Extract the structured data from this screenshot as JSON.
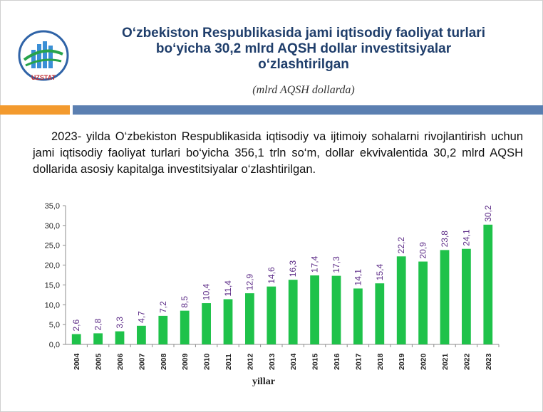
{
  "header": {
    "logo_text": "UZSTAT",
    "title_line1": "O‘zbekiston Respublikasida jami iqtisodiy faoliyat turlari",
    "title_line2": "bo‘yicha 30,2  mlrd AQSH dollar investitsiyalar",
    "title_line3": "o‘zlashtirilgan",
    "subtitle": "(mlrd AQSH dollarda)"
  },
  "body": {
    "paragraph": "2023- yilda O‘zbekiston Respublikasida iqtisodiy va ijtimoiy sohalarni rivojlantirish uchun jami iqtisodiy faoliyat turlari bo‘yicha 356,1 trln so‘m, dollar ekvivalentida 30,2 mlrd AQSH dollarida asosiy kapitalga investitsiyalar o‘zlashtirilgan."
  },
  "colors": {
    "bar": "#1fc24a",
    "data_label": "#5b2a86",
    "title": "#1f3e6b",
    "accent_orange": "#f39a2e",
    "accent_blue": "#5b7fb1"
  },
  "chart_data": {
    "type": "bar",
    "categories": [
      "2004",
      "2005",
      "2006",
      "2007",
      "2008",
      "2009",
      "2010",
      "2011",
      "2012",
      "2013",
      "2014",
      "2015",
      "2016",
      "2017",
      "2018",
      "2019",
      "2020",
      "2021",
      "2022",
      "2023"
    ],
    "values": [
      2.6,
      2.8,
      3.3,
      4.7,
      7.2,
      8.5,
      10.4,
      11.4,
      12.9,
      14.6,
      16.3,
      17.4,
      17.3,
      14.1,
      15.4,
      22.2,
      20.9,
      23.8,
      24.1,
      30.2
    ],
    "value_labels": [
      "2,6",
      "2,8",
      "3,3",
      "4,7",
      "7,2",
      "8,5",
      "10,4",
      "11,4",
      "12,9",
      "14,6",
      "16,3",
      "17,4",
      "17,3",
      "14,1",
      "15,4",
      "22,2",
      "20,9",
      "23,8",
      "24,1",
      "30,2"
    ],
    "y_ticks": [
      "0,0",
      "5,0",
      "10,0",
      "15,0",
      "20,0",
      "25,0",
      "30,0",
      "35,0"
    ],
    "ylim": [
      0,
      35
    ],
    "xlabel": "yillar",
    "ylabel": "",
    "grid": false
  }
}
